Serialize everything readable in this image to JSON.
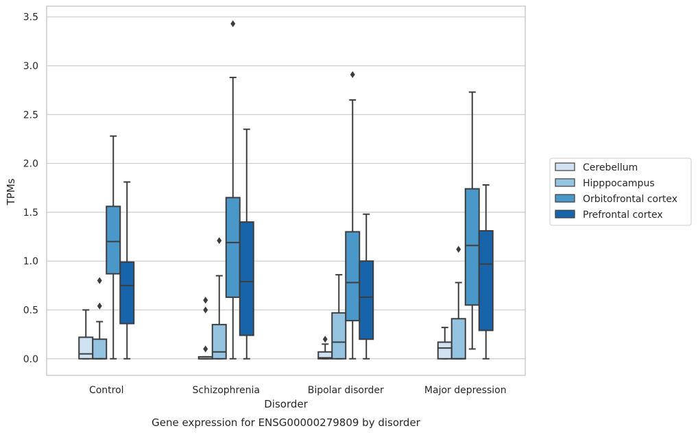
{
  "caption": "Gene expression for ENSG00000279809 by disorder",
  "chart_data": {
    "type": "box",
    "title": "",
    "xlabel": "Disorder",
    "ylabel": "TPMs",
    "ylim": [
      -0.17,
      3.61
    ],
    "yticks": [
      "0.0",
      "0.5",
      "1.0",
      "1.5",
      "2.0",
      "2.5",
      "3.0",
      "3.5"
    ],
    "categories": [
      "Control",
      "Schizophrenia",
      "Bipolar disorder",
      "Major depression"
    ],
    "grid": true,
    "legend_position": "right",
    "series": [
      {
        "name": "Cerebellum",
        "color": "#d0e1f2",
        "boxes": [
          {
            "whislo": 0.0,
            "q1": 0.0,
            "med": 0.05,
            "q3": 0.22,
            "whishi": 0.5,
            "fliers": []
          },
          {
            "whislo": 0.0,
            "q1": 0.0,
            "med": 0.0,
            "q3": 0.02,
            "whishi": 0.02,
            "fliers": [
              0.1,
              0.5,
              0.6
            ]
          },
          {
            "whislo": 0.0,
            "q1": 0.0,
            "med": 0.01,
            "q3": 0.07,
            "whishi": 0.15,
            "fliers": [
              0.2
            ]
          },
          {
            "whislo": 0.0,
            "q1": 0.0,
            "med": 0.11,
            "q3": 0.17,
            "whishi": 0.32,
            "fliers": []
          }
        ]
      },
      {
        "name": "Hipppocampus",
        "color": "#94c4df",
        "boxes": [
          {
            "whislo": 0.0,
            "q1": 0.0,
            "med": 0.0,
            "q3": 0.2,
            "whishi": 0.38,
            "fliers": [
              0.54,
              0.8
            ]
          },
          {
            "whislo": 0.0,
            "q1": 0.0,
            "med": 0.07,
            "q3": 0.35,
            "whishi": 0.85,
            "fliers": [
              1.21
            ]
          },
          {
            "whislo": 0.0,
            "q1": 0.0,
            "med": 0.17,
            "q3": 0.47,
            "whishi": 0.86,
            "fliers": []
          },
          {
            "whislo": 0.0,
            "q1": 0.0,
            "med": 0.0,
            "q3": 0.41,
            "whishi": 0.78,
            "fliers": [
              1.12
            ]
          }
        ]
      },
      {
        "name": "Orbitofrontal cortex",
        "color": "#4a98c9",
        "boxes": [
          {
            "whislo": 0.0,
            "q1": 0.87,
            "med": 1.2,
            "q3": 1.56,
            "whishi": 2.28,
            "fliers": []
          },
          {
            "whislo": 0.0,
            "q1": 0.63,
            "med": 1.19,
            "q3": 1.65,
            "whishi": 2.88,
            "fliers": [
              3.43
            ]
          },
          {
            "whislo": 0.0,
            "q1": 0.39,
            "med": 0.78,
            "q3": 1.3,
            "whishi": 2.65,
            "fliers": [
              2.91
            ]
          },
          {
            "whislo": 0.1,
            "q1": 0.55,
            "med": 1.16,
            "q3": 1.74,
            "whishi": 2.73,
            "fliers": []
          }
        ]
      },
      {
        "name": "Prefrontal cortex",
        "color": "#1764ab",
        "boxes": [
          {
            "whislo": 0.0,
            "q1": 0.36,
            "med": 0.75,
            "q3": 0.99,
            "whishi": 1.81,
            "fliers": []
          },
          {
            "whislo": 0.0,
            "q1": 0.24,
            "med": 0.79,
            "q3": 1.4,
            "whishi": 2.35,
            "fliers": []
          },
          {
            "whislo": 0.0,
            "q1": 0.2,
            "med": 0.63,
            "q3": 1.0,
            "whishi": 1.48,
            "fliers": []
          },
          {
            "whislo": 0.0,
            "q1": 0.29,
            "med": 0.97,
            "q3": 1.31,
            "whishi": 1.78,
            "fliers": []
          }
        ]
      }
    ]
  }
}
